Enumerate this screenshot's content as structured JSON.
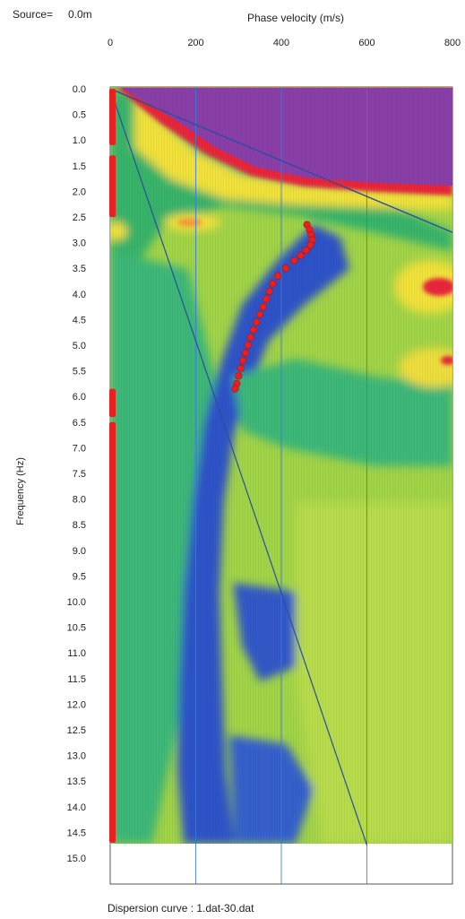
{
  "header": {
    "source_label": "Source=",
    "source_value": "0.0m"
  },
  "footer": {
    "caption": "Dispersion curve : 1.dat-30.dat"
  },
  "chart_data": {
    "type": "heatmap",
    "title": "",
    "xlabel": "Phase velocity (m/s)",
    "ylabel": "Frequency (Hz)",
    "x_axis_position": "top",
    "xlim": [
      0,
      800
    ],
    "ylim": [
      0,
      15
    ],
    "y_inverted": true,
    "x_ticks": [
      0,
      200,
      400,
      600,
      800
    ],
    "y_ticks": [
      0.0,
      0.5,
      1.0,
      1.5,
      2.0,
      2.5,
      3.0,
      3.5,
      4.0,
      4.5,
      5.0,
      5.5,
      6.0,
      6.5,
      7.0,
      7.5,
      8.0,
      8.5,
      9.0,
      9.5,
      10.0,
      10.5,
      11.0,
      11.5,
      12.0,
      12.5,
      13.0,
      13.5,
      14.0,
      14.5,
      15.0
    ],
    "grid": "vertical",
    "colormap": {
      "high": "#8a3fa8",
      "upper": "#e8283a",
      "mid_high": "#f6e83a",
      "mid": "#a8d84a",
      "mid_low": "#3cb878",
      "low": "#2e52c8"
    },
    "data_extent_hz": [
      0,
      14.75
    ],
    "picked_dispersion_curve": {
      "color": "#e82020",
      "points": [
        {
          "v": 460,
          "f": 2.65
        },
        {
          "v": 466,
          "f": 2.75
        },
        {
          "v": 470,
          "f": 2.85
        },
        {
          "v": 472,
          "f": 2.95
        },
        {
          "v": 468,
          "f": 3.05
        },
        {
          "v": 458,
          "f": 3.15
        },
        {
          "v": 445,
          "f": 3.25
        },
        {
          "v": 430,
          "f": 3.35
        },
        {
          "v": 410,
          "f": 3.5
        },
        {
          "v": 392,
          "f": 3.65
        },
        {
          "v": 380,
          "f": 3.8
        },
        {
          "v": 372,
          "f": 3.95
        },
        {
          "v": 365,
          "f": 4.1
        },
        {
          "v": 358,
          "f": 4.25
        },
        {
          "v": 350,
          "f": 4.4
        },
        {
          "v": 342,
          "f": 4.55
        },
        {
          "v": 335,
          "f": 4.7
        },
        {
          "v": 328,
          "f": 4.85
        },
        {
          "v": 322,
          "f": 5.0
        },
        {
          "v": 316,
          "f": 5.15
        },
        {
          "v": 310,
          "f": 5.3
        },
        {
          "v": 305,
          "f": 5.45
        },
        {
          "v": 300,
          "f": 5.6
        },
        {
          "v": 296,
          "f": 5.75
        },
        {
          "v": 292,
          "f": 5.85
        }
      ]
    },
    "aliasing_lines": {
      "color": "#2a4ea0",
      "lines": [
        {
          "from": {
            "v": 0,
            "f": 0.0
          },
          "to": {
            "v": 800,
            "f": 2.8
          }
        },
        {
          "from": {
            "v": 0,
            "f": 0.0
          },
          "to": {
            "v": 800,
            "f": 2.8
          },
          "style": "upper"
        },
        {
          "from": {
            "v": 0,
            "f": 0.0
          },
          "to": {
            "v": 600,
            "f": 14.75
          }
        }
      ]
    },
    "axis_marker_bands": {
      "color": "#e82020",
      "ranges_hz": [
        [
          0.0,
          1.1
        ],
        [
          1.3,
          2.5
        ],
        [
          5.85,
          6.4
        ],
        [
          6.5,
          14.7
        ]
      ]
    }
  }
}
